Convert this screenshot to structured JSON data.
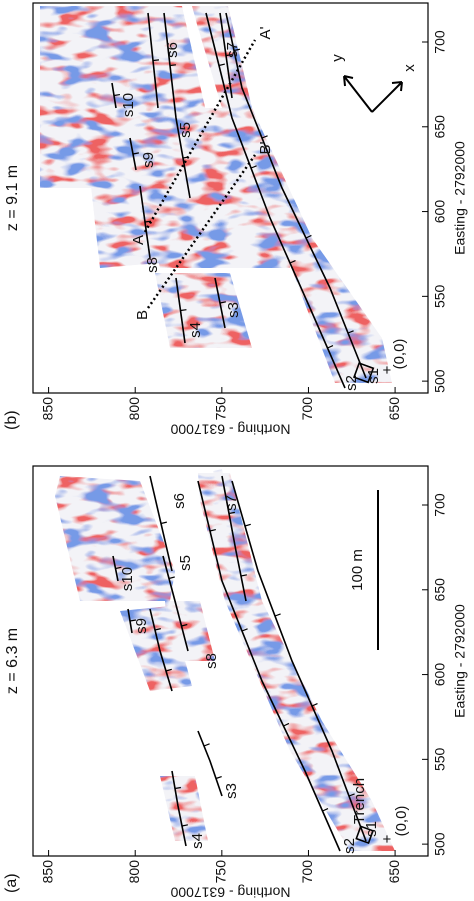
{
  "chart_data": [
    {
      "type": "image",
      "panel_label": "(a)",
      "title": "z = 6.3 m",
      "x_label": "Easting - 2792000",
      "y_label": "Northing - 6317000",
      "xlim": [
        493,
        723
      ],
      "ylim": [
        631,
        859
      ],
      "xticks": [
        500,
        550,
        600,
        650,
        700
      ],
      "yticks": [
        650,
        700,
        750,
        800,
        850
      ],
      "annotations": [
        "s1",
        "s2",
        "s3",
        "s4",
        "s5",
        "s6",
        "s7",
        "s8",
        "s9",
        "s10",
        "Trench",
        "+",
        "(0,0)",
        "100 m"
      ]
    },
    {
      "type": "image",
      "panel_label": "(b)",
      "title": "z = 9.1 m",
      "x_label": "Easting - 2792000",
      "y_label": "Northing - 6317000",
      "xlim": [
        493,
        723
      ],
      "ylim": [
        631,
        859
      ],
      "xticks": [
        500,
        550,
        600,
        650,
        700
      ],
      "yticks": [
        650,
        700,
        750,
        800,
        850
      ],
      "annotations": [
        "s1",
        "s2",
        "s3",
        "s4",
        "s5",
        "s6",
        "s7",
        "s8",
        "s9",
        "s10",
        "A",
        "A'",
        "B",
        "B'",
        "+",
        "(0,0)",
        "y",
        "x"
      ]
    }
  ]
}
